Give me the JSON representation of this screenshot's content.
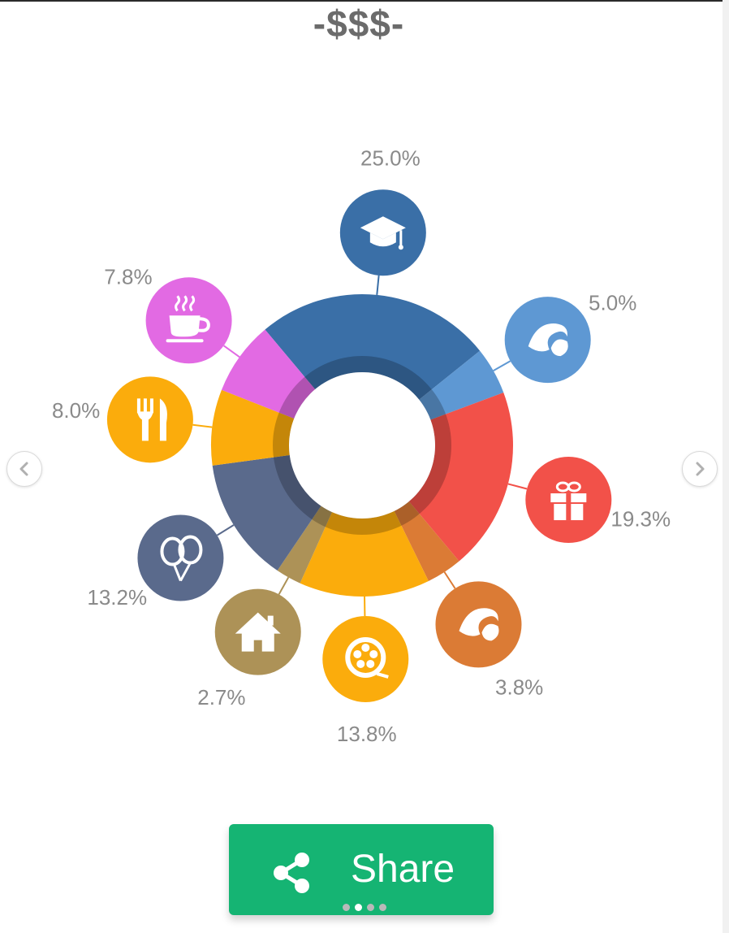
{
  "title": "-$$$-",
  "chart_data": {
    "type": "pie",
    "donut": true,
    "segments": [
      {
        "value": 25.0,
        "label": "25.0%",
        "color": "#3a6fa7",
        "icon": "graduation-cap-icon"
      },
      {
        "value": 5.0,
        "label": "5.0%",
        "color": "#5e98d3",
        "icon": "croissant-icon"
      },
      {
        "value": 19.3,
        "label": "19.3%",
        "color": "#f25149",
        "icon": "gift-icon"
      },
      {
        "value": 3.8,
        "label": "3.8%",
        "color": "#db7b35",
        "icon": "croissant-icon"
      },
      {
        "value": 13.8,
        "label": "13.8%",
        "color": "#fbac0c",
        "icon": "film-reel-icon"
      },
      {
        "value": 2.7,
        "label": "2.7%",
        "color": "#ad9257",
        "icon": "house-icon"
      },
      {
        "value": 13.2,
        "label": "13.2%",
        "color": "#5a6a8c",
        "icon": "balloons-icon"
      },
      {
        "value": 8.0,
        "label": "8.0%",
        "color": "#fbac0c",
        "icon": "fork-knife-icon"
      },
      {
        "value": 7.8,
        "label": "7.8%",
        "color": "#e26ae3",
        "icon": "coffee-cup-icon"
      }
    ]
  },
  "share_button": {
    "label": "Share"
  },
  "pagination": {
    "pages": 4,
    "active": 1
  }
}
